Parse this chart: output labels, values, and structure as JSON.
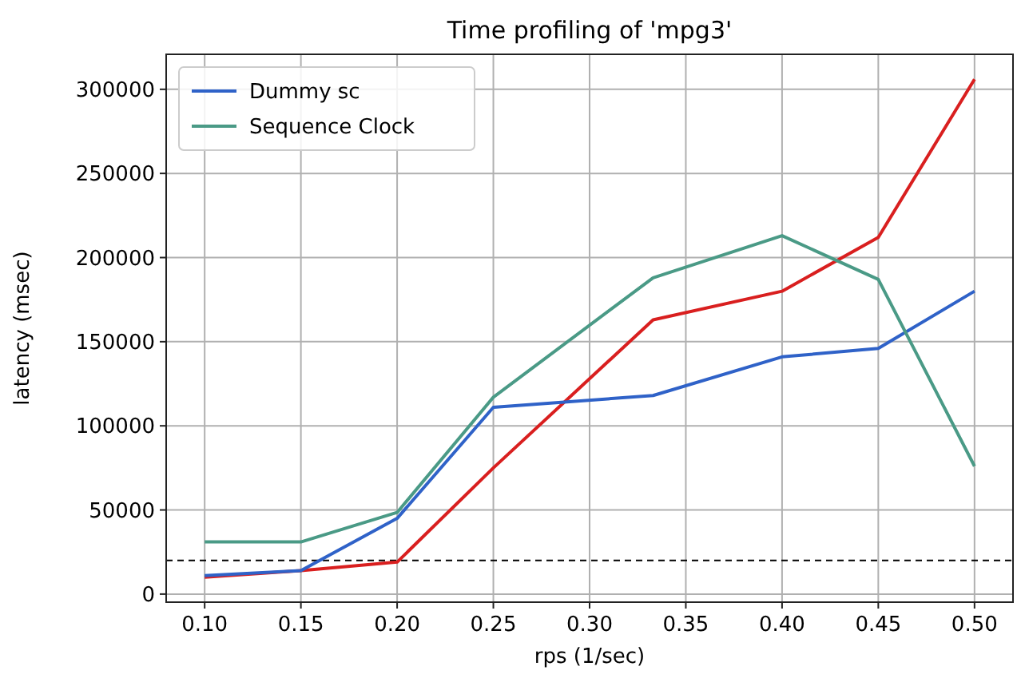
{
  "chart_data": {
    "type": "line",
    "title": "Time profiling of 'mpg3'",
    "xlabel": "rps (1/sec)",
    "ylabel": "latency (msec)",
    "x": [
      0.1,
      0.15,
      0.2,
      0.25,
      0.333,
      0.4,
      0.45,
      0.5
    ],
    "series": [
      {
        "color": "#d91f1f",
        "values": [
          10000,
          14000,
          19000,
          75000,
          163000,
          180000,
          212000,
          306000
        ]
      },
      {
        "name": "Dummy sc",
        "color": "#2f62c8",
        "values": [
          11000,
          14000,
          45000,
          111000,
          118000,
          141000,
          146000,
          180000
        ]
      },
      {
        "name": "Sequence Clock",
        "color": "#4a9a86",
        "values": [
          31000,
          31000,
          48500,
          117000,
          188000,
          213000,
          187000,
          76000
        ]
      }
    ],
    "xlim": [
      0.08,
      0.52
    ],
    "xticks": [
      {
        "value": 0.1,
        "label": "0.10"
      },
      {
        "value": 0.15,
        "label": "0.15"
      },
      {
        "value": 0.2,
        "label": "0.20"
      },
      {
        "value": 0.25,
        "label": "0.25"
      },
      {
        "value": 0.3,
        "label": "0.30"
      },
      {
        "value": 0.35,
        "label": "0.35"
      },
      {
        "value": 0.4,
        "label": "0.40"
      },
      {
        "value": 0.45,
        "label": "0.45"
      },
      {
        "value": 0.5,
        "label": "0.50"
      }
    ],
    "ylim": [
      -4800,
      320800
    ],
    "yticks": [
      0,
      50000,
      100000,
      150000,
      200000,
      250000,
      300000
    ],
    "ref_lines": [
      {
        "axis": "y",
        "value": 20000,
        "color": "#000000",
        "line_style": "dashed"
      }
    ],
    "grid": true,
    "legend": "top left",
    "line_style": "solid",
    "marker": "none"
  }
}
